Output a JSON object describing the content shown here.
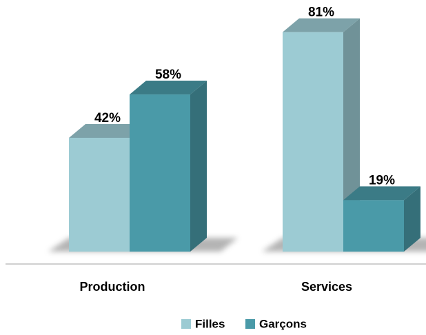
{
  "chart_data": {
    "type": "bar3d",
    "categories": [
      "Production",
      "Services"
    ],
    "series": [
      {
        "name": "Filles",
        "color": "#9ccbd3",
        "values": [
          42,
          81
        ],
        "value_labels": [
          "42%",
          "81%"
        ]
      },
      {
        "name": "Garçons",
        "color": "#4a9aa8",
        "values": [
          58,
          19
        ],
        "value_labels": [
          "58%",
          "19%"
        ]
      }
    ],
    "ylim": [
      0,
      100
    ]
  }
}
